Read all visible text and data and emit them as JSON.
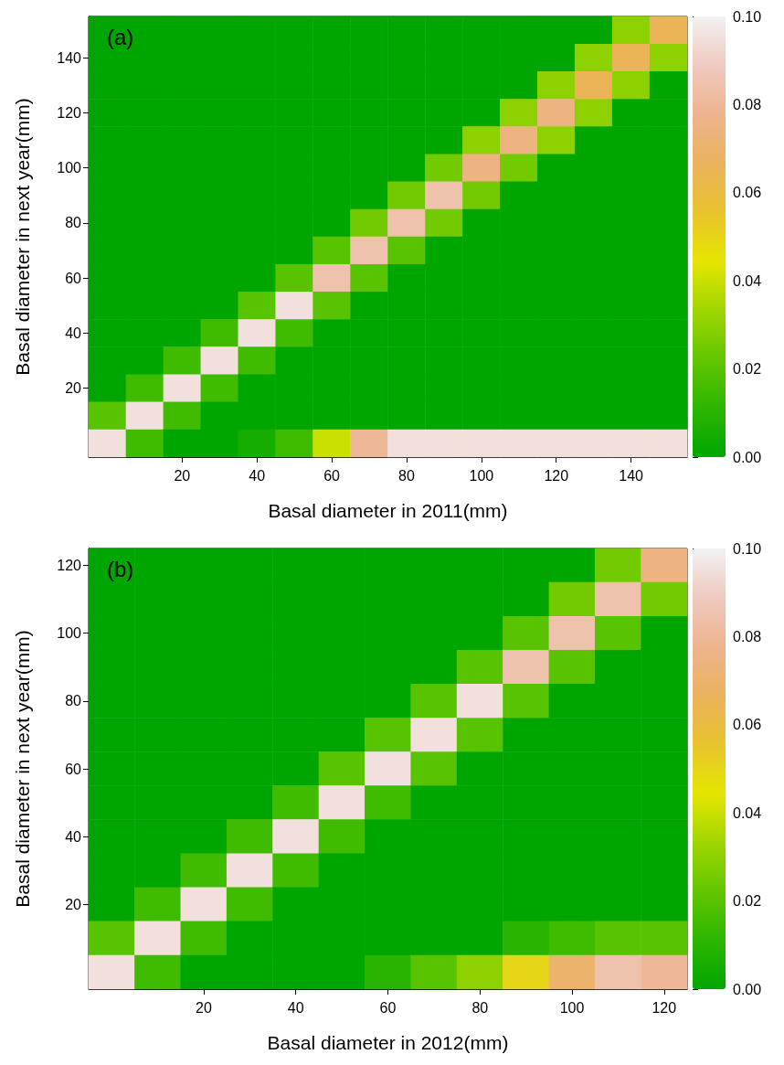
{
  "chart_data": [
    {
      "type": "heatmap",
      "xlabel": "Basal diameter in 2011(mm)",
      "ylabel": "Basal diameter in next year(mm)",
      "annotations": [
        "(a)"
      ],
      "categories": [
        null,
        null,
        "20",
        null,
        "40",
        null,
        "60",
        null,
        "80",
        null,
        "100",
        null,
        "120",
        null,
        "140",
        null
      ],
      "y_categories": [
        null,
        "140",
        null,
        "120",
        null,
        "100",
        null,
        "80",
        null,
        "60",
        null,
        "40",
        null,
        "20",
        null,
        null
      ],
      "colors": [
        "#00a600",
        "#2db600",
        "#63c600",
        "#a0d600",
        "#e6e600",
        "#e8c32e",
        "#ebb25e",
        "#edb48e",
        "#f0c9c0",
        "#f2f2f2"
      ],
      "clim": [
        0,
        0.1
      ],
      "cticks": [
        {
          "value": 0,
          "label": "0.00"
        },
        {
          "value": 0.02,
          "label": "0.02"
        },
        {
          "value": 0.04,
          "label": "0.04"
        },
        {
          "value": 0.06,
          "label": "0.06"
        },
        {
          "value": 0.08,
          "label": "0.08"
        },
        {
          "value": 0.1,
          "label": "0.10"
        }
      ],
      "cells": [
        [
          0,
          0,
          0,
          0,
          0,
          0,
          0,
          0,
          0,
          0,
          0,
          0,
          0,
          0,
          0.03,
          0.065
        ],
        [
          0,
          0,
          0,
          0,
          0,
          0,
          0,
          0,
          0,
          0,
          0,
          0,
          0,
          0.03,
          0.065,
          0.03
        ],
        [
          0,
          0,
          0,
          0,
          0,
          0,
          0,
          0,
          0,
          0,
          0,
          0,
          0.03,
          0.065,
          0.03,
          0
        ],
        [
          0,
          0,
          0,
          0,
          0,
          0,
          0,
          0,
          0,
          0,
          0,
          0.03,
          0.075,
          0.03,
          0,
          0
        ],
        [
          0,
          0,
          0,
          0,
          0,
          0,
          0,
          0,
          0,
          0,
          0.03,
          0.075,
          0.03,
          0,
          0,
          0
        ],
        [
          0,
          0,
          0,
          0,
          0,
          0,
          0,
          0,
          0,
          0.025,
          0.075,
          0.025,
          0,
          0,
          0,
          0
        ],
        [
          0,
          0,
          0,
          0,
          0,
          0,
          0,
          0,
          0.025,
          0.085,
          0.025,
          0,
          0,
          0,
          0,
          0
        ],
        [
          0,
          0,
          0,
          0,
          0,
          0,
          0,
          0.025,
          0.085,
          0.025,
          0,
          0,
          0,
          0,
          0,
          0
        ],
        [
          0,
          0,
          0,
          0,
          0,
          0,
          0.02,
          0.085,
          0.02,
          0,
          0,
          0,
          0,
          0,
          0,
          0
        ],
        [
          0,
          0,
          0,
          0,
          0,
          0.02,
          0.085,
          0.02,
          0,
          0,
          0,
          0,
          0,
          0,
          0,
          0
        ],
        [
          0,
          0,
          0,
          0,
          0.02,
          0.095,
          0.02,
          0,
          0,
          0,
          0,
          0,
          0,
          0,
          0,
          0
        ],
        [
          0,
          0,
          0,
          0.015,
          0.095,
          0.015,
          0,
          0,
          0,
          0,
          0,
          0,
          0,
          0,
          0,
          0
        ],
        [
          0,
          0,
          0.015,
          0.095,
          0.015,
          0,
          0,
          0,
          0,
          0,
          0,
          0,
          0,
          0,
          0,
          0
        ],
        [
          0,
          0.015,
          0.095,
          0.015,
          0,
          0,
          0,
          0,
          0,
          0,
          0,
          0,
          0,
          0,
          0,
          0
        ],
        [
          0.02,
          0.095,
          0.015,
          0,
          0,
          0,
          0,
          0,
          0,
          0,
          0,
          0,
          0,
          0,
          0,
          0
        ],
        [
          0.095,
          0.015,
          0,
          0,
          0.005,
          0.015,
          0.04,
          0.08,
          0.095,
          0.095,
          0.095,
          0.095,
          0.095,
          0.095,
          0.095,
          0.095
        ]
      ]
    },
    {
      "type": "heatmap",
      "xlabel": "Basal diameter in 2012(mm)",
      "ylabel": "Basal diameter in next year(mm)",
      "annotations": [
        "(b)"
      ],
      "categories": [
        null,
        null,
        "20",
        null,
        "40",
        null,
        "60",
        null,
        "80",
        null,
        "100",
        null,
        "120"
      ],
      "y_categories": [
        "120",
        null,
        "100",
        null,
        "80",
        null,
        "60",
        null,
        "40",
        null,
        "20",
        null,
        null
      ],
      "colors": [
        "#00a600",
        "#2db600",
        "#63c600",
        "#a0d600",
        "#e6e600",
        "#e8c32e",
        "#ebb25e",
        "#edb48e",
        "#f0c9c0",
        "#f2f2f2"
      ],
      "clim": [
        0,
        0.1
      ],
      "cticks": [
        {
          "value": 0,
          "label": "0.00"
        },
        {
          "value": 0.02,
          "label": "0.02"
        },
        {
          "value": 0.04,
          "label": "0.04"
        },
        {
          "value": 0.06,
          "label": "0.06"
        },
        {
          "value": 0.08,
          "label": "0.08"
        },
        {
          "value": 0.1,
          "label": "0.10"
        }
      ],
      "cells": [
        [
          0,
          0,
          0,
          0,
          0,
          0,
          0,
          0,
          0,
          0,
          0,
          0.025,
          0.075
        ],
        [
          0,
          0,
          0,
          0,
          0,
          0,
          0,
          0,
          0,
          0,
          0.025,
          0.085,
          0.025
        ],
        [
          0,
          0,
          0,
          0,
          0,
          0,
          0,
          0,
          0,
          0.02,
          0.085,
          0.02,
          0
        ],
        [
          0,
          0,
          0,
          0,
          0,
          0,
          0,
          0,
          0.02,
          0.085,
          0.02,
          0,
          0
        ],
        [
          0,
          0,
          0,
          0,
          0,
          0,
          0,
          0.02,
          0.095,
          0.02,
          0,
          0,
          0
        ],
        [
          0,
          0,
          0,
          0,
          0,
          0,
          0.02,
          0.095,
          0.02,
          0,
          0,
          0,
          0
        ],
        [
          0,
          0,
          0,
          0,
          0,
          0.02,
          0.095,
          0.02,
          0,
          0,
          0,
          0,
          0
        ],
        [
          0,
          0,
          0,
          0,
          0.015,
          0.095,
          0.015,
          0,
          0,
          0,
          0,
          0,
          0
        ],
        [
          0,
          0,
          0,
          0.015,
          0.095,
          0.015,
          0,
          0,
          0,
          0,
          0,
          0,
          0
        ],
        [
          0,
          0,
          0.015,
          0.095,
          0.015,
          0,
          0,
          0,
          0,
          0,
          0,
          0,
          0
        ],
        [
          0,
          0.015,
          0.095,
          0.015,
          0,
          0,
          0,
          0,
          0,
          0,
          0,
          0,
          0
        ],
        [
          0.02,
          0.095,
          0.015,
          0,
          0,
          0,
          0,
          0,
          0,
          0.01,
          0.015,
          0.02,
          0.02
        ],
        [
          0.095,
          0.015,
          0,
          0,
          0,
          0,
          0.01,
          0.02,
          0.03,
          0.05,
          0.07,
          0.085,
          0.08
        ]
      ]
    }
  ]
}
